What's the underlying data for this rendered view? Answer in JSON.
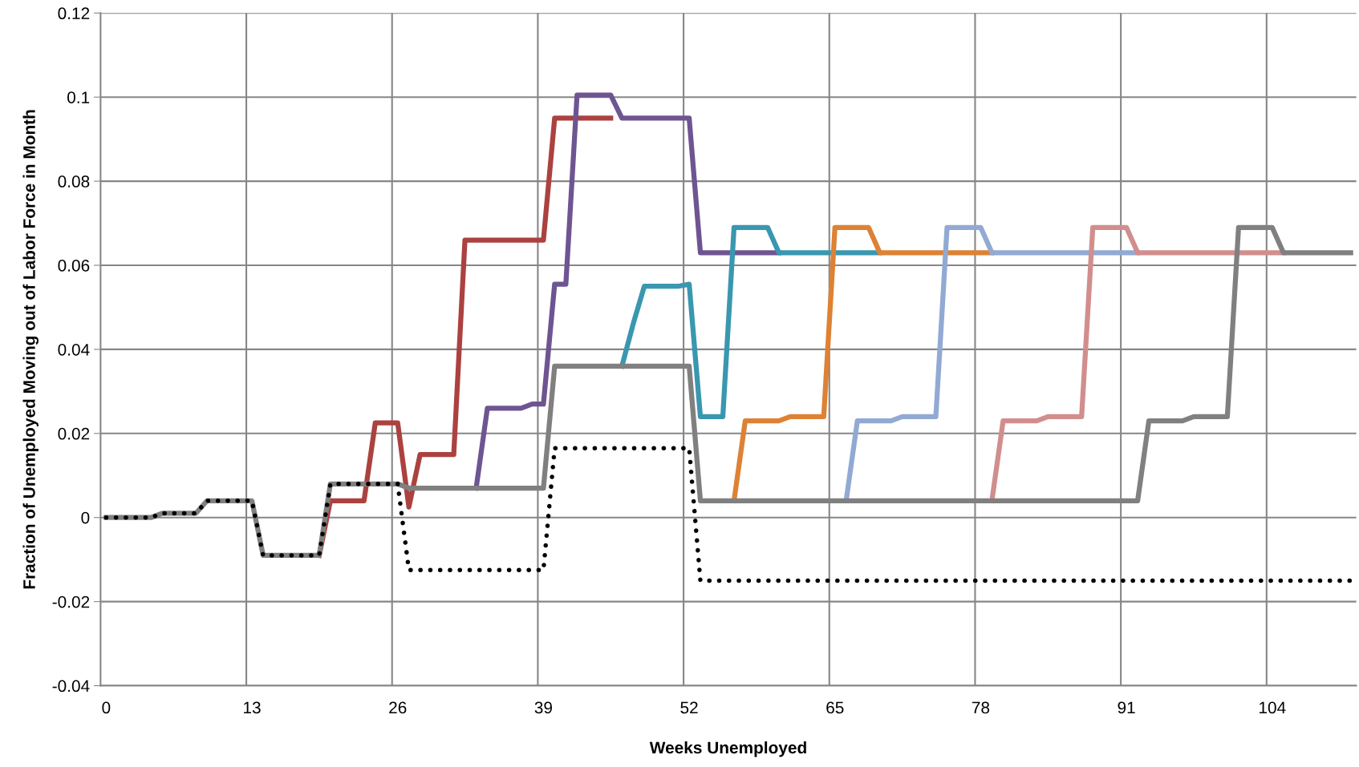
{
  "chart_data": {
    "type": "line",
    "xlabel": "Weeks Unemployed",
    "ylabel": "Fraction of Unemployed Moving out of Labor Force in Month",
    "categories": [
      "0",
      null,
      null,
      null,
      null,
      null,
      null,
      null,
      null,
      null,
      null,
      null,
      null,
      "13",
      null,
      null,
      null,
      null,
      null,
      null,
      null,
      null,
      null,
      null,
      null,
      null,
      "26",
      null,
      null,
      null,
      null,
      null,
      null,
      null,
      null,
      null,
      null,
      null,
      null,
      "39",
      null,
      null,
      null,
      null,
      null,
      null,
      null,
      null,
      null,
      null,
      null,
      null,
      "52",
      null,
      null,
      null,
      null,
      null,
      null,
      null,
      null,
      null,
      null,
      null,
      null,
      "65",
      null,
      null,
      null,
      null,
      null,
      null,
      null,
      null,
      null,
      null,
      null,
      null,
      "78",
      null,
      null,
      null,
      null,
      null,
      null,
      null,
      null,
      null,
      null,
      null,
      null,
      "91",
      null,
      null,
      null,
      null,
      null,
      null,
      null,
      null,
      null,
      null,
      null,
      null,
      "104",
      null,
      null,
      null,
      null,
      null,
      null,
      null
    ],
    "ylim": [
      -0.04,
      0.12
    ],
    "yticks": [
      -0.04,
      -0.02,
      0,
      0.02,
      0.04,
      0.06,
      0.08,
      0.1,
      0.12
    ],
    "grid": true,
    "marker": "none",
    "series": [
      {
        "color": "#ab4240",
        "values": [
          null,
          null,
          null,
          null,
          null,
          null,
          null,
          null,
          null,
          null,
          null,
          null,
          null,
          null,
          null,
          null,
          null,
          null,
          null,
          -0.009,
          0.004,
          0.004,
          0.004,
          0.004,
          0.0225,
          0.0225,
          0.0225,
          0.0025,
          0.015,
          0.015,
          0.015,
          0.015,
          0.066,
          0.066,
          0.066,
          0.066,
          0.066,
          0.066,
          0.066,
          0.066,
          0.095,
          0.095,
          0.095,
          0.095,
          0.095,
          0.095,
          null,
          null,
          null,
          null,
          null,
          null,
          null,
          null,
          null,
          null,
          null,
          null,
          null,
          null,
          null,
          null,
          null,
          null,
          null,
          null,
          null,
          null,
          null,
          null,
          null,
          null,
          null,
          null,
          null,
          null,
          null,
          null,
          null,
          null,
          null,
          null,
          null,
          null,
          null,
          null,
          null,
          null,
          null,
          null,
          null,
          null,
          null,
          null,
          null,
          null,
          null,
          null,
          null,
          null,
          null,
          null,
          null,
          null,
          null,
          null,
          null,
          null,
          null,
          null,
          null,
          null
        ]
      },
      {
        "color": "#6e5592",
        "values": [
          null,
          null,
          null,
          null,
          null,
          null,
          null,
          null,
          null,
          null,
          null,
          null,
          null,
          null,
          null,
          null,
          null,
          null,
          null,
          null,
          null,
          null,
          null,
          null,
          null,
          null,
          null,
          null,
          null,
          null,
          null,
          null,
          null,
          0.007,
          0.026,
          0.026,
          0.026,
          0.026,
          0.027,
          0.027,
          0.0555,
          0.0555,
          0.1005,
          0.1005,
          0.1005,
          0.1005,
          0.095,
          0.095,
          0.095,
          0.095,
          0.095,
          0.095,
          0.095,
          0.063,
          0.063,
          0.063,
          0.063,
          0.063,
          0.063,
          0.063,
          0.063,
          null,
          null,
          null,
          null,
          null,
          null,
          null,
          null,
          null,
          null,
          null,
          null,
          null,
          null,
          null,
          null,
          null,
          null,
          null,
          null,
          null,
          null,
          null,
          null,
          null,
          null,
          null,
          null,
          null,
          null,
          null,
          null,
          null,
          null,
          null,
          null,
          null,
          null,
          null,
          null,
          null,
          null,
          null,
          null,
          null,
          null,
          null,
          null,
          null,
          null,
          null
        ]
      },
      {
        "color": "#3a97b0",
        "values": [
          null,
          null,
          null,
          null,
          null,
          null,
          null,
          null,
          null,
          null,
          null,
          null,
          null,
          null,
          null,
          null,
          null,
          null,
          null,
          null,
          null,
          null,
          null,
          null,
          null,
          null,
          null,
          null,
          null,
          null,
          null,
          null,
          null,
          null,
          null,
          null,
          null,
          null,
          null,
          null,
          null,
          null,
          null,
          null,
          null,
          null,
          0.036,
          0.046,
          0.055,
          0.055,
          0.055,
          0.055,
          0.0555,
          0.024,
          0.024,
          0.024,
          0.069,
          0.069,
          0.069,
          0.069,
          0.063,
          0.063,
          0.063,
          0.063,
          0.063,
          0.063,
          0.063,
          0.063,
          0.063,
          0.063,
          null,
          null,
          null,
          null,
          null,
          null,
          null,
          null,
          null,
          null,
          null,
          null,
          null,
          null,
          null,
          null,
          null,
          null,
          null,
          null,
          null,
          null,
          null,
          null,
          null,
          null,
          null,
          null,
          null,
          null,
          null,
          null,
          null,
          null,
          null,
          null,
          null,
          null,
          null,
          null,
          null,
          null
        ]
      },
      {
        "color": "#dd8234",
        "values": [
          null,
          null,
          null,
          null,
          null,
          null,
          null,
          null,
          null,
          null,
          null,
          null,
          null,
          null,
          null,
          null,
          null,
          null,
          null,
          null,
          null,
          null,
          null,
          null,
          null,
          null,
          null,
          null,
          null,
          null,
          null,
          null,
          null,
          null,
          null,
          null,
          null,
          null,
          null,
          null,
          null,
          null,
          null,
          null,
          null,
          null,
          null,
          null,
          null,
          null,
          null,
          null,
          null,
          null,
          null,
          null,
          0.004,
          0.023,
          0.023,
          0.023,
          0.023,
          0.024,
          0.024,
          0.024,
          0.024,
          0.069,
          0.069,
          0.069,
          0.069,
          0.063,
          0.063,
          0.063,
          0.063,
          0.063,
          0.063,
          0.063,
          0.063,
          0.063,
          0.063,
          0.063,
          null,
          null,
          null,
          null,
          null,
          null,
          null,
          null,
          null,
          null,
          null,
          null,
          null,
          null,
          null,
          null,
          null,
          null,
          null,
          null,
          null,
          null,
          null,
          null,
          null,
          null,
          null,
          null,
          null,
          null,
          null,
          null
        ]
      },
      {
        "color": "#92aad3",
        "values": [
          null,
          null,
          null,
          null,
          null,
          null,
          null,
          null,
          null,
          null,
          null,
          null,
          null,
          null,
          null,
          null,
          null,
          null,
          null,
          null,
          null,
          null,
          null,
          null,
          null,
          null,
          null,
          null,
          null,
          null,
          null,
          null,
          null,
          null,
          null,
          null,
          null,
          null,
          null,
          null,
          null,
          null,
          null,
          null,
          null,
          null,
          null,
          null,
          null,
          null,
          null,
          null,
          null,
          null,
          null,
          null,
          null,
          null,
          null,
          null,
          null,
          null,
          null,
          null,
          null,
          null,
          0.004,
          0.023,
          0.023,
          0.023,
          0.023,
          0.024,
          0.024,
          0.024,
          0.024,
          0.069,
          0.069,
          0.069,
          0.069,
          0.063,
          0.063,
          0.063,
          0.063,
          0.063,
          0.063,
          0.063,
          0.063,
          0.063,
          0.063,
          0.063,
          0.063,
          0.063,
          0.063,
          null,
          null,
          null,
          null,
          null,
          null,
          null,
          null,
          null,
          null,
          null,
          null,
          null,
          null,
          null,
          null,
          null,
          null,
          null
        ]
      },
      {
        "color": "#d18e8d",
        "values": [
          null,
          null,
          null,
          null,
          null,
          null,
          null,
          null,
          null,
          null,
          null,
          null,
          null,
          null,
          null,
          null,
          null,
          null,
          null,
          null,
          null,
          null,
          null,
          null,
          null,
          null,
          null,
          null,
          null,
          null,
          null,
          null,
          null,
          null,
          null,
          null,
          null,
          null,
          null,
          null,
          null,
          null,
          null,
          null,
          null,
          null,
          null,
          null,
          null,
          null,
          null,
          null,
          null,
          null,
          null,
          null,
          null,
          null,
          null,
          null,
          null,
          null,
          null,
          null,
          null,
          null,
          null,
          null,
          null,
          null,
          null,
          null,
          null,
          null,
          null,
          null,
          null,
          null,
          null,
          0.004,
          0.023,
          0.023,
          0.023,
          0.023,
          0.024,
          0.024,
          0.024,
          0.024,
          0.069,
          0.069,
          0.069,
          0.069,
          0.063,
          0.063,
          0.063,
          0.063,
          0.063,
          0.063,
          0.063,
          0.063,
          0.063,
          0.063,
          0.063,
          0.063,
          0.063,
          0.063,
          null,
          null,
          null,
          null,
          null,
          null
        ]
      },
      {
        "color": "#808080",
        "values": [
          0,
          0,
          0,
          0,
          0,
          0.001,
          0.001,
          0.001,
          0.001,
          0.004,
          0.004,
          0.004,
          0.004,
          0.004,
          -0.009,
          -0.009,
          -0.009,
          -0.009,
          -0.009,
          -0.009,
          0.008,
          0.008,
          0.008,
          0.008,
          0.008,
          0.008,
          0.008,
          0.007,
          0.007,
          0.007,
          0.007,
          0.007,
          0.007,
          0.007,
          0.007,
          0.007,
          0.007,
          0.007,
          0.007,
          0.007,
          0.036,
          0.036,
          0.036,
          0.036,
          0.036,
          0.036,
          0.036,
          0.036,
          0.036,
          0.036,
          0.036,
          0.036,
          0.036,
          0.004,
          0.004,
          0.004,
          0.004,
          0.004,
          0.004,
          0.004,
          0.004,
          0.004,
          0.004,
          0.004,
          0.004,
          0.004,
          0.004,
          0.004,
          0.004,
          0.004,
          0.004,
          0.004,
          0.004,
          0.004,
          0.004,
          0.004,
          0.004,
          0.004,
          0.004,
          0.004,
          0.004,
          0.004,
          0.004,
          0.004,
          0.004,
          0.004,
          0.004,
          0.004,
          0.004,
          0.004,
          0.004,
          0.004,
          0.004,
          0.023,
          0.023,
          0.023,
          0.023,
          0.024,
          0.024,
          0.024,
          0.024,
          0.069,
          0.069,
          0.069,
          0.069,
          0.063,
          0.063,
          0.063,
          0.063,
          0.063,
          0.063,
          0.063
        ]
      },
      {
        "color": "#000000",
        "line_style": "dotted",
        "values": [
          0,
          0,
          0,
          0,
          0,
          0.001,
          0.001,
          0.001,
          0.001,
          0.004,
          0.004,
          0.004,
          0.004,
          0.004,
          -0.009,
          -0.009,
          -0.009,
          -0.009,
          -0.009,
          -0.009,
          0.008,
          0.008,
          0.008,
          0.008,
          0.008,
          0.008,
          0.008,
          -0.0125,
          -0.0125,
          -0.0125,
          -0.0125,
          -0.0125,
          -0.0125,
          -0.0125,
          -0.0125,
          -0.0125,
          -0.0125,
          -0.0125,
          -0.0125,
          -0.0125,
          0.0165,
          0.0165,
          0.0165,
          0.0165,
          0.0165,
          0.0165,
          0.0165,
          0.0165,
          0.0165,
          0.0165,
          0.0165,
          0.0165,
          0.0165,
          -0.015,
          -0.015,
          -0.015,
          -0.015,
          -0.015,
          -0.015,
          -0.015,
          -0.015,
          -0.015,
          -0.015,
          -0.015,
          -0.015,
          -0.015,
          -0.015,
          -0.015,
          -0.015,
          -0.015,
          -0.015,
          -0.015,
          -0.015,
          -0.015,
          -0.015,
          -0.015,
          -0.015,
          -0.015,
          -0.015,
          -0.015,
          -0.015,
          -0.015,
          -0.015,
          -0.015,
          -0.015,
          -0.015,
          -0.015,
          -0.015,
          -0.015,
          -0.015,
          -0.015,
          -0.015,
          -0.015,
          -0.015,
          -0.015,
          -0.015,
          -0.015,
          -0.015,
          -0.015,
          -0.015,
          -0.015,
          -0.015,
          -0.015,
          -0.015,
          -0.015,
          -0.015,
          -0.015,
          -0.015,
          -0.015,
          -0.015,
          -0.015,
          -0.015
        ]
      }
    ]
  }
}
